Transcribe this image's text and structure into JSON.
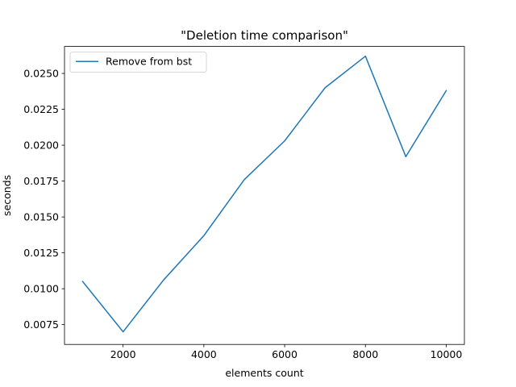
{
  "chart_data": {
    "type": "line",
    "title": "\"Deletion time comparison\"",
    "xlabel": "elements count",
    "ylabel": "seconds",
    "xlim": [
      550,
      10450
    ],
    "ylim": [
      0.00612,
      0.02688
    ],
    "xticks": [
      2000,
      4000,
      6000,
      8000,
      10000
    ],
    "xtick_labels": [
      "2000",
      "4000",
      "6000",
      "8000",
      "10000"
    ],
    "yticks": [
      0.0075,
      0.01,
      0.0125,
      0.015,
      0.0175,
      0.02,
      0.0225,
      0.025
    ],
    "ytick_labels": [
      "0.0075",
      "0.0100",
      "0.0125",
      "0.0150",
      "0.0175",
      "0.0200",
      "0.0225",
      "0.0250"
    ],
    "grid": false,
    "legend_position": "upper-left",
    "series": [
      {
        "name": "Remove from bst",
        "color": "#1f77b4",
        "x": [
          1000,
          2000,
          3000,
          4000,
          5000,
          6000,
          7000,
          8000,
          9000,
          10000
        ],
        "y": [
          0.0105,
          0.007,
          0.0106,
          0.0137,
          0.0176,
          0.0203,
          0.024,
          0.0262,
          0.0192,
          0.0238
        ]
      }
    ]
  }
}
